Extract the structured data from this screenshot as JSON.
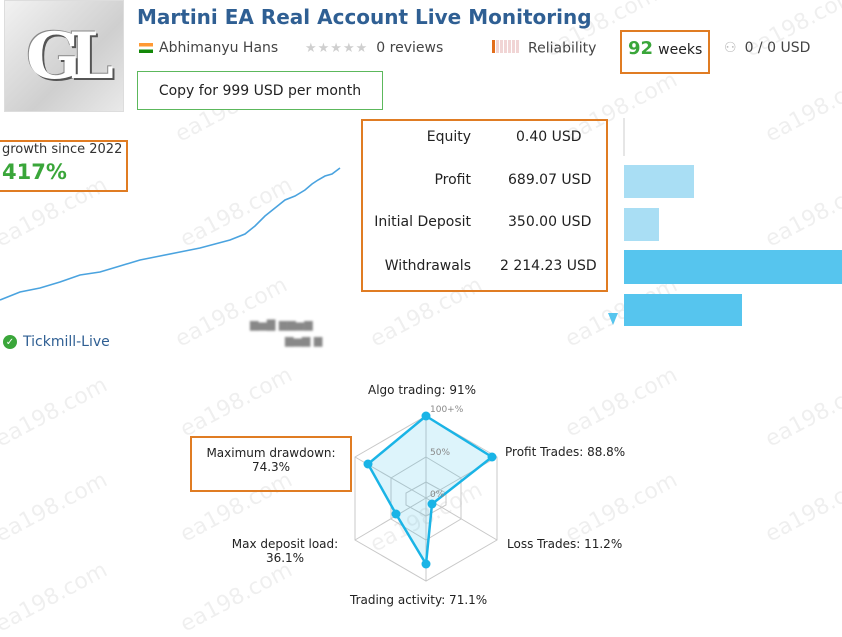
{
  "header": {
    "title": "Martini EA Real Account Live Monitoring",
    "logo_text": "GL",
    "author": "Abhimanyu Hans",
    "reviews": "0 reviews",
    "reliability_label": "Reliability",
    "weeks_value": "92",
    "weeks_unit": "weeks",
    "subscribers": "0 / 0 USD",
    "copy_button": "Copy for 999 USD per month"
  },
  "growth": {
    "label": "growth since 2022",
    "value": "417%"
  },
  "stats": [
    {
      "label": "Equity",
      "value": "0.40 USD"
    },
    {
      "label": "Profit",
      "value": "689.07 USD"
    },
    {
      "label": "Initial Deposit",
      "value": "350.00 USD"
    },
    {
      "label": "Withdrawals",
      "value": "2 214.23 USD"
    }
  ],
  "broker": "Tickmill-Live",
  "radar": {
    "algo_trading": "Algo trading: 91%",
    "profit_trades": "Profit Trades: 88.8%",
    "loss_trades": "Loss Trades: 11.2%",
    "trading_activity": "Trading activity: 71.1%",
    "max_deposit_load_label": "Max deposit load:",
    "max_deposit_load_value": "36.1%",
    "max_drawdown_label": "Maximum drawdown:",
    "max_drawdown_value": "74.3%",
    "scale_100": "100+%",
    "scale_50": "50%",
    "scale_0": "0%"
  },
  "watermark": "ea198.com",
  "colors": {
    "title_blue": "#2f5f93",
    "highlight_orange": "#e07c23",
    "growth_green": "#3aa63a",
    "bar_blue": "#56c5ee",
    "radar_cyan": "#1ab4e6"
  }
}
